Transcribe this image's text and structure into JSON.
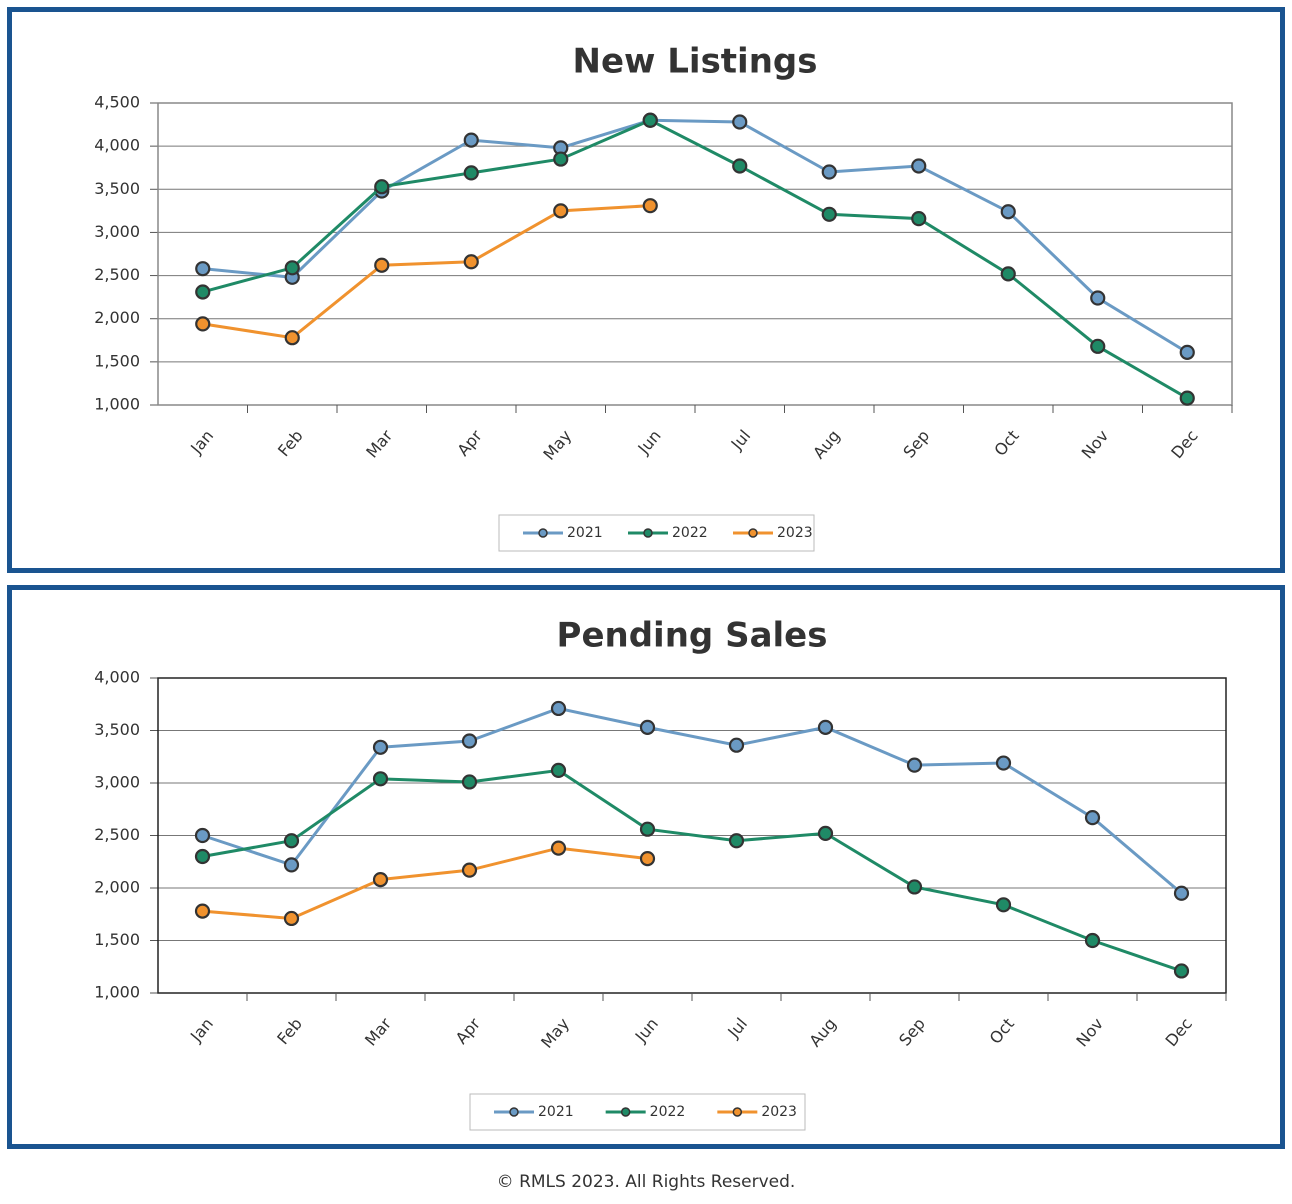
{
  "chart_data": [
    {
      "type": "line",
      "title": "New Listings",
      "categories": [
        "Jan",
        "Feb",
        "Mar",
        "Apr",
        "May",
        "Jun",
        "Jul",
        "Aug",
        "Sep",
        "Oct",
        "Nov",
        "Dec"
      ],
      "series": [
        {
          "name": "2021",
          "color": "#6a9ac4",
          "values": [
            2580,
            2480,
            3480,
            4070,
            3980,
            4300,
            4280,
            3700,
            3770,
            3240,
            2240,
            1610
          ]
        },
        {
          "name": "2022",
          "color": "#1f8a66",
          "values": [
            2310,
            2590,
            3530,
            3690,
            3850,
            4300,
            3770,
            3210,
            3160,
            2520,
            1680,
            1080
          ]
        },
        {
          "name": "2023",
          "color": "#f0922e",
          "values": [
            1940,
            1780,
            2620,
            2660,
            3250,
            3310,
            null,
            null,
            null,
            null,
            null,
            null
          ]
        }
      ],
      "ylim": [
        1000,
        4500
      ],
      "yticks": [
        {
          "value": 1000,
          "label": "1,000"
        },
        {
          "value": 1500,
          "label": "1,500"
        },
        {
          "value": 2000,
          "label": "2,000"
        },
        {
          "value": 2500,
          "label": "2,500"
        },
        {
          "value": 3000,
          "label": "3,000"
        },
        {
          "value": 3500,
          "label": "3,500"
        },
        {
          "value": 4000,
          "label": "4,000"
        },
        {
          "value": 4500,
          "label": "4,500"
        }
      ],
      "grid": true,
      "legend": "bottom"
    },
    {
      "type": "line",
      "title": "Pending Sales",
      "categories": [
        "Jan",
        "Feb",
        "Mar",
        "Apr",
        "May",
        "Jun",
        "Jul",
        "Aug",
        "Sep",
        "Oct",
        "Nov",
        "Dec"
      ],
      "series": [
        {
          "name": "2021",
          "color": "#6a9ac4",
          "values": [
            2500,
            2220,
            3340,
            3400,
            3710,
            3530,
            3360,
            3530,
            3170,
            3190,
            2670,
            1950
          ]
        },
        {
          "name": "2022",
          "color": "#1f8a66",
          "values": [
            2300,
            2450,
            3040,
            3010,
            3120,
            2560,
            2450,
            2520,
            2010,
            1840,
            1500,
            1210
          ]
        },
        {
          "name": "2023",
          "color": "#f0922e",
          "values": [
            1780,
            1710,
            2080,
            2170,
            2380,
            2280,
            null,
            null,
            null,
            null,
            null,
            null
          ]
        }
      ],
      "ylim": [
        1000,
        4000
      ],
      "yticks": [
        {
          "value": 1000,
          "label": "1,000"
        },
        {
          "value": 1500,
          "label": "1,500"
        },
        {
          "value": 2000,
          "label": "2,000"
        },
        {
          "value": 2500,
          "label": "2,500"
        },
        {
          "value": 3000,
          "label": "3,000"
        },
        {
          "value": 3500,
          "label": "3,500"
        },
        {
          "value": 4000,
          "label": "4,000"
        }
      ],
      "grid": true,
      "legend": "bottom"
    }
  ],
  "footer": "© RMLS 2023. All Rights Reserved."
}
